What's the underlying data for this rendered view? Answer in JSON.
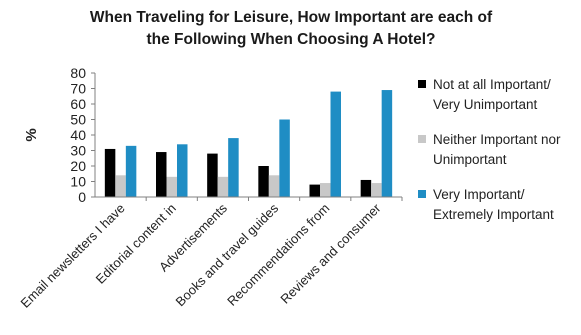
{
  "chart_data": {
    "type": "bar",
    "title_lines": [
      "When Traveling for Leisure, How Important are each of",
      "the Following When Choosing A Hotel?"
    ],
    "ylabel": "%",
    "ylim": [
      0,
      80
    ],
    "yticks": [
      "0",
      "10",
      "20",
      "30",
      "40",
      "50",
      "60",
      "70",
      "80"
    ],
    "grid": false,
    "legend_position": "right",
    "categories": [
      "Email newsletters I have",
      "Editorial content in",
      "Advertisements",
      "Books and travel guides",
      "Recommendations from",
      "Reviews and consumer"
    ],
    "series": [
      {
        "name_lines": [
          "Not at all Important/",
          "Very Unimportant"
        ],
        "color": "#000000",
        "values": [
          31,
          29,
          28,
          20,
          8,
          11
        ]
      },
      {
        "name_lines": [
          "Neither Important nor",
          "Unimportant"
        ],
        "color": "#c8c8c8",
        "values": [
          14,
          13,
          13,
          14,
          9,
          9
        ]
      },
      {
        "name_lines": [
          "Very Important/",
          "Extremely Important"
        ],
        "color": "#1f8dc4",
        "values": [
          33,
          34,
          38,
          50,
          68,
          69
        ]
      }
    ]
  }
}
